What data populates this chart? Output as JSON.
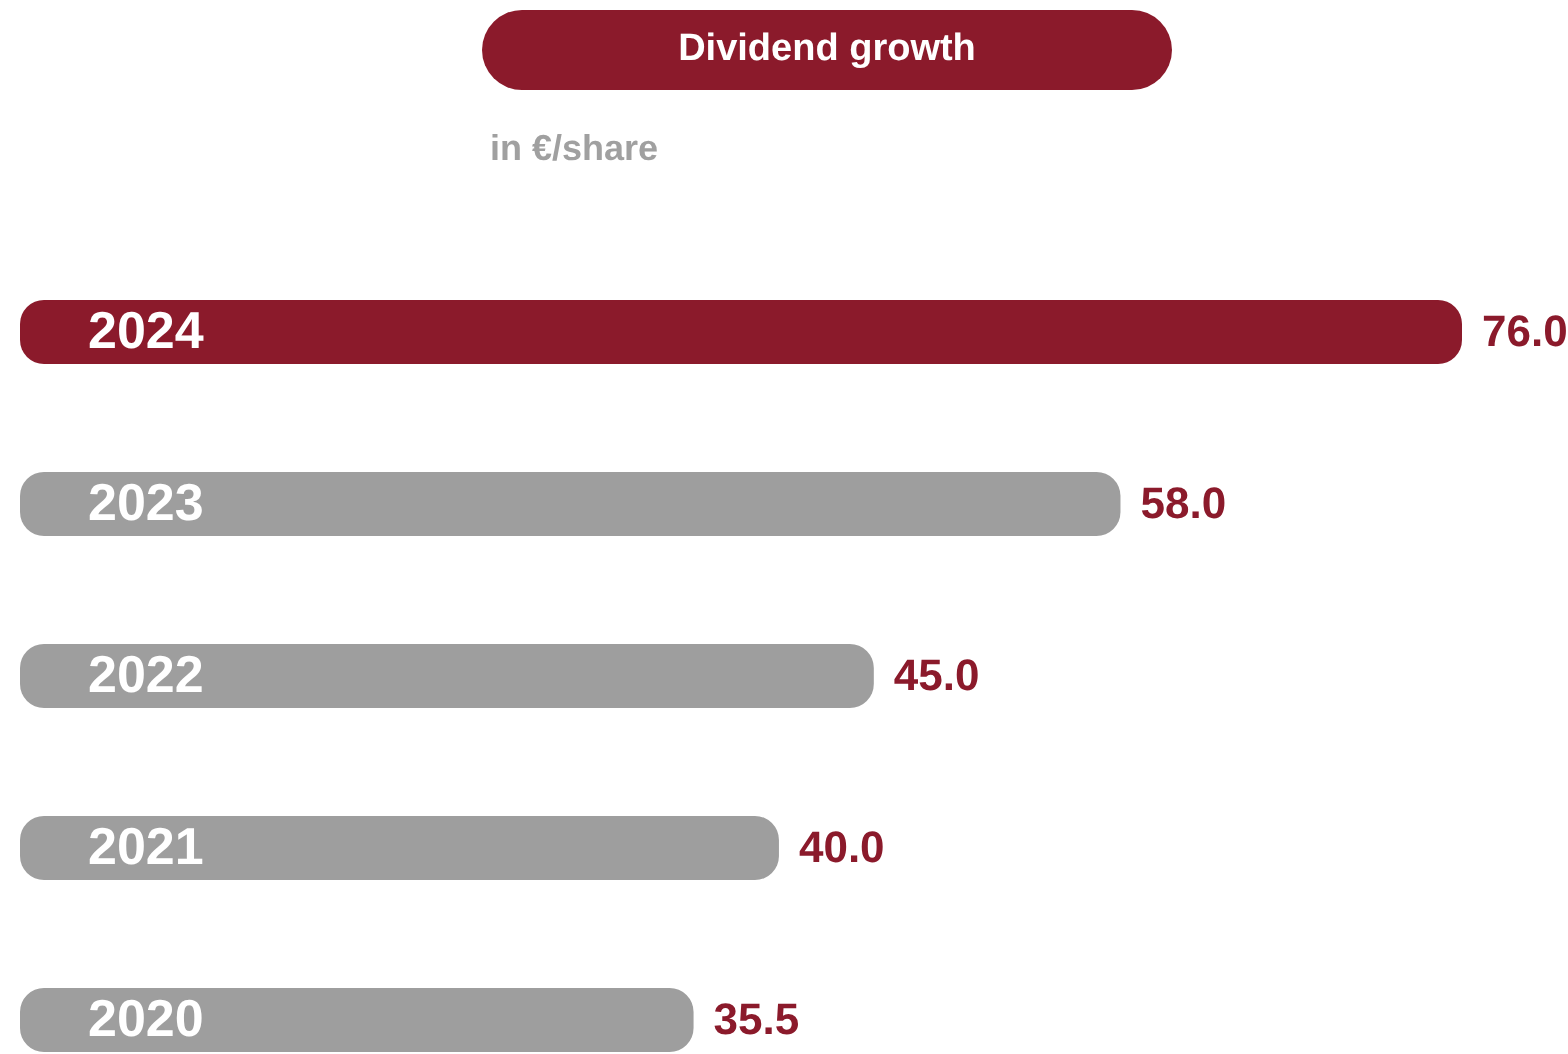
{
  "chart_data": {
    "type": "bar",
    "orientation": "horizontal",
    "title": "Dividend growth",
    "subtitle": "in €/share",
    "categories": [
      "2024",
      "2023",
      "2022",
      "2021",
      "2020"
    ],
    "values": [
      76.0,
      58.0,
      45.0,
      40.0,
      35.5
    ],
    "value_labels": [
      "76.0",
      "58.0",
      "45.0",
      "40.0",
      "35.5"
    ],
    "colors": [
      "#8b1a2b",
      "#9e9e9e",
      "#9e9e9e",
      "#9e9e9e",
      "#9e9e9e"
    ]
  }
}
